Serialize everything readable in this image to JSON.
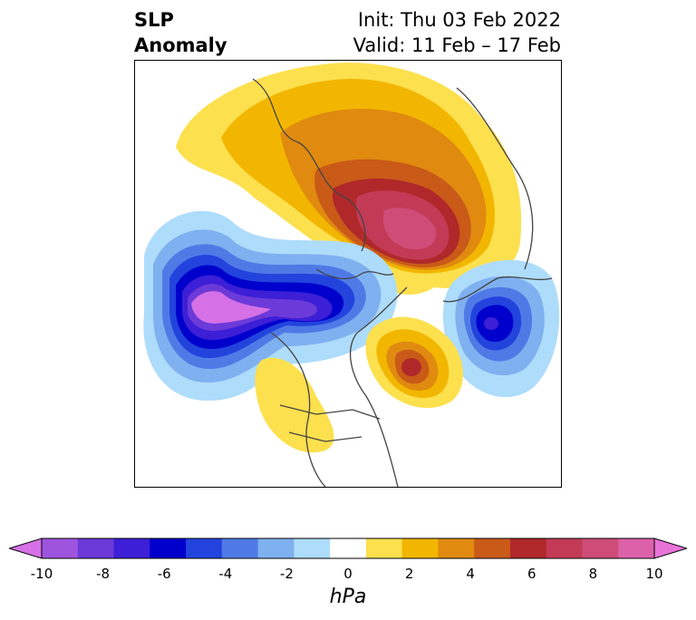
{
  "title": {
    "left_line1": "SLP",
    "left_line2": "Anomaly",
    "right_line1": "Init: Thu 03 Feb 2022",
    "right_line2": "Valid: 11 Feb – 17 Feb"
  },
  "colorbar": {
    "units": "hPa",
    "ticks": [
      "-10",
      "-8",
      "-6",
      "-4",
      "-2",
      "0",
      "2",
      "4",
      "6",
      "8",
      "10"
    ],
    "colors": [
      "#d670e6",
      "#9e55de",
      "#6b3ad8",
      "#3c1fd6",
      "#0000cc",
      "#2244dd",
      "#4f7ae6",
      "#7fb0f0",
      "#aedcfb",
      "#ffffff",
      "#fde04e",
      "#f2b600",
      "#e08a10",
      "#c95a18",
      "#b0282a",
      "#c33a56",
      "#cf4c78",
      "#db62a8",
      "#e874d8"
    ],
    "range": [
      -10,
      10
    ]
  },
  "map": {
    "projection": "north-polar-stereographic",
    "variable": "sea level pressure anomaly"
  }
}
